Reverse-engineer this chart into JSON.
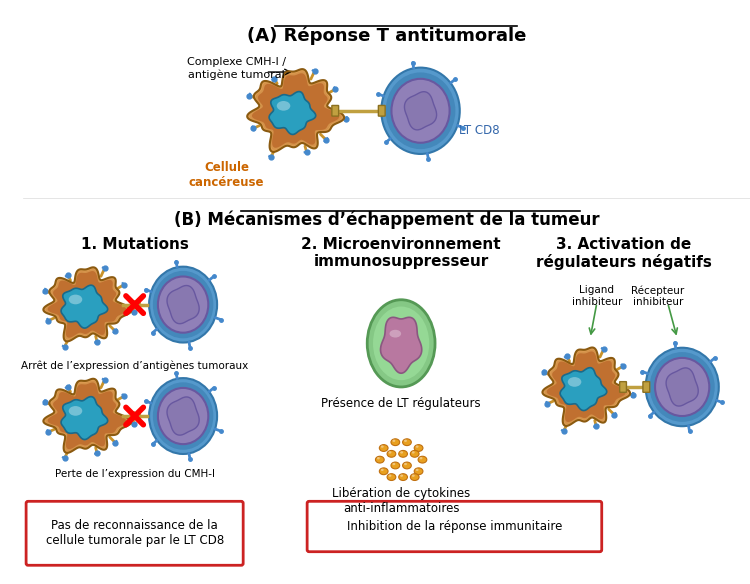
{
  "title_A": "(A) Réponse T antitumorale",
  "title_B": "(B) Mécanismes d’échappement de la tumeur",
  "subtitle1": "1. Mutations",
  "subtitle2": "2. Microenvironnement\nimmunosuppresseur",
  "subtitle3": "3. Activation de\nrégulateurs négatifs",
  "label_cancer_cell": "Cellule\ncancéreuse",
  "label_lt_cd8": "LT CD8",
  "label_complexe": "Complexe CMH-I /\nantigène tumoral",
  "label_arret": "Arrêt de l’expression d’antigènes tumoraux",
  "label_perte": "Perte de l’expression du CMH-I",
  "label_presence": "Présence de LT régulateurs",
  "label_liberation": "Libération de cytokines\nanti-inflammatoires",
  "label_ligand": "Ligand\ninhibiteur",
  "label_recepteur": "Récepteur\ninhibiteur",
  "box1_text": "Pas de reconnaissance de la\ncellule tumorale par le LT CD8",
  "box2_text": "Inhibition de la réponse immunitaire",
  "color_cancer_outer": "#D4924A",
  "color_cancer_inner": "#3AACCF",
  "color_tcell_outer": "#7B68A8",
  "color_tcell_ring": "#5599CC",
  "color_regulator_outer": "#7FC97F",
  "color_regulator_inner": "#C08090",
  "color_cytokine": "#E8A020",
  "color_connector": "#B8A060",
  "color_box_border": "#CC2222",
  "color_title_orange": "#CC6600",
  "color_blue_receptor": "#5599CC",
  "color_green_arrow": "#449944",
  "background": "#FFFFFF"
}
